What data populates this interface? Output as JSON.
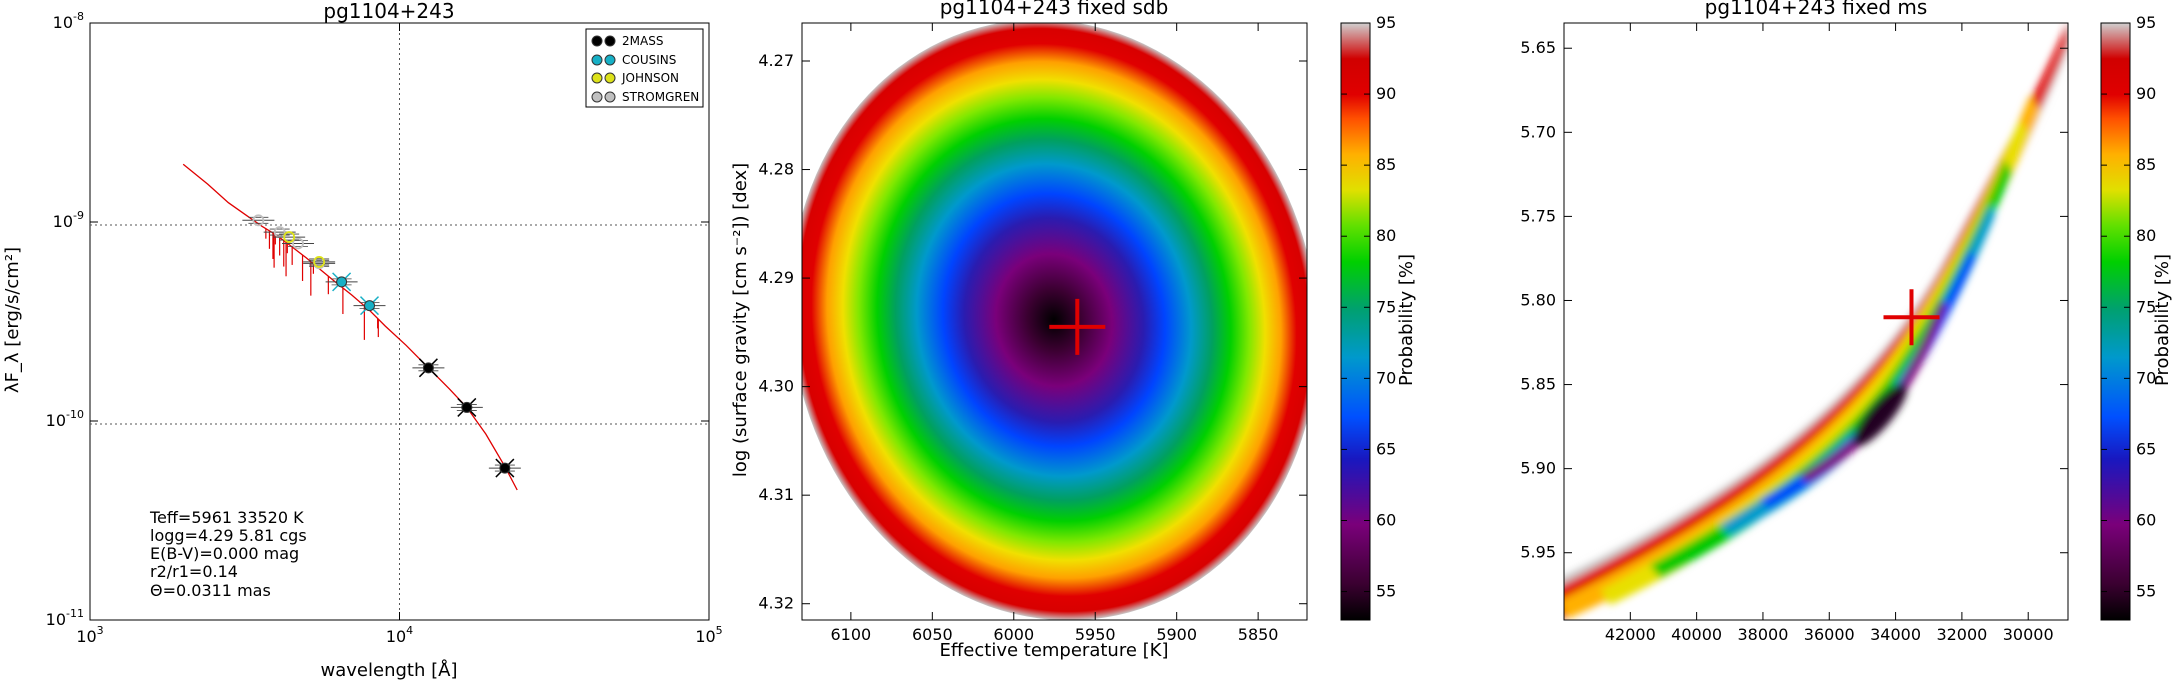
{
  "chart_data": [
    {
      "type": "scatter",
      "title": "pg1104+243",
      "xlabel": "wavelength [Å]",
      "ylabel": "λF_λ [erg/s/cm²]",
      "xscale": "log",
      "yscale": "log",
      "xlim": [
        1000,
        100000
      ],
      "ylim": [
        1e-11,
        1e-08
      ],
      "grid": true,
      "x_ticks": [
        {
          "v": 1000,
          "m": "10",
          "e": "3"
        },
        {
          "v": 10000,
          "m": "10",
          "e": "4"
        },
        {
          "v": 100000,
          "m": "10",
          "e": "5"
        }
      ],
      "y_ticks": [
        {
          "v": 1e-11,
          "m": "10",
          "e": "-11"
        },
        {
          "v": 1e-10,
          "m": "10",
          "e": "-10"
        },
        {
          "v": 1e-09,
          "m": "10",
          "e": "-9"
        },
        {
          "v": 1e-08,
          "m": "10",
          "e": "-8"
        }
      ],
      "legend": {
        "placement": "top-right",
        "entries": [
          {
            "label": "2MASS",
            "color": "#000000"
          },
          {
            "label": "COUSINS",
            "color": "#17b0c6"
          },
          {
            "label": "JOHNSON",
            "color": "#dde21a"
          },
          {
            "label": "STROMGREN",
            "color": "#c0c0c0"
          }
        ]
      },
      "photometry": [
        {
          "system": "STROMGREN",
          "x": 3500,
          "y": 1.02e-09
        },
        {
          "system": "STROMGREN",
          "x": 4100,
          "y": 8.9e-10
        },
        {
          "system": "STROMGREN",
          "x": 4700,
          "y": 7.8e-10
        },
        {
          "system": "STROMGREN",
          "x": 5500,
          "y": 6.2e-10
        },
        {
          "system": "JOHNSON",
          "x": 4400,
          "y": 8.4e-10
        },
        {
          "system": "JOHNSON",
          "x": 5500,
          "y": 6.3e-10
        },
        {
          "system": "COUSINS",
          "x": 6500,
          "y": 5e-10
        },
        {
          "system": "COUSINS",
          "x": 8000,
          "y": 3.8e-10
        },
        {
          "system": "2MASS",
          "x": 12400,
          "y": 1.85e-10
        },
        {
          "system": "2MASS",
          "x": 16500,
          "y": 1.17e-10
        },
        {
          "system": "2MASS",
          "x": 21900,
          "y": 5.8e-11
        }
      ],
      "model": [
        {
          "x": 2000,
          "y": 1.95e-09
        },
        {
          "x": 2400,
          "y": 1.55e-09
        },
        {
          "x": 2800,
          "y": 1.25e-09
        },
        {
          "x": 3200,
          "y": 1.08e-09
        },
        {
          "x": 3600,
          "y": 9.5e-10
        },
        {
          "x": 4000,
          "y": 8.6e-10
        },
        {
          "x": 4400,
          "y": 7.7e-10
        },
        {
          "x": 5000,
          "y": 6.6e-10
        },
        {
          "x": 5600,
          "y": 5.7e-10
        },
        {
          "x": 6200,
          "y": 5e-10
        },
        {
          "x": 7000,
          "y": 4.3e-10
        },
        {
          "x": 8000,
          "y": 3.6e-10
        },
        {
          "x": 9000,
          "y": 3e-10
        },
        {
          "x": 10500,
          "y": 2.4e-10
        },
        {
          "x": 12400,
          "y": 1.85e-10
        },
        {
          "x": 14500,
          "y": 1.45e-10
        },
        {
          "x": 16500,
          "y": 1.17e-10
        },
        {
          "x": 19000,
          "y": 8.6e-11
        },
        {
          "x": 21900,
          "y": 5.9e-11
        },
        {
          "x": 24000,
          "y": 4.5e-11
        }
      ],
      "annotations": [
        "Teff=5961   33520 K",
        "logg=4.29   5.81 cgs",
        "E(B-V)=0.000 mag",
        "r2/r1=0.14",
        "Θ=0.0311 mas"
      ]
    },
    {
      "type": "heatmap",
      "title": "pg1104+243 fixed sdb",
      "xlabel": "Effective temperature [K]",
      "ylabel": "log (surface gravity [cm s⁻²]) [dex]",
      "xlim": [
        6130,
        5820
      ],
      "ylim": [
        4.3215,
        4.2665
      ],
      "x_ticks": [
        6100,
        6050,
        6000,
        5950,
        5900,
        5850
      ],
      "x_tick_labels": [
        "6100",
        "6050",
        "6000",
        "5950",
        "5900",
        "5850"
      ],
      "y_ticks": [
        4.27,
        4.28,
        4.29,
        4.3,
        4.31,
        4.32
      ],
      "y_tick_labels": [
        "4.27",
        "4.28",
        "4.29",
        "4.30",
        "4.31",
        "4.32"
      ],
      "best_fit": {
        "x": 5961,
        "y": 4.2945
      },
      "contours": "concentric ellipses, 53-95 %",
      "colorbar": {
        "label": "Probability [%]",
        "ticks": [
          "95",
          "90",
          "85",
          "80",
          "75",
          "70",
          "65",
          "60",
          "55"
        ],
        "range": [
          53,
          95
        ]
      }
    },
    {
      "type": "heatmap",
      "title": "pg1104+243 fixed ms",
      "xlabel": "",
      "ylabel": "",
      "xlim": [
        44000,
        28800
      ],
      "ylim": [
        5.99,
        5.635
      ],
      "x_ticks": [
        42000,
        40000,
        38000,
        36000,
        34000,
        32000,
        30000
      ],
      "x_tick_labels": [
        "42000",
        "40000",
        "38000",
        "36000",
        "34000",
        "32000",
        "30000"
      ],
      "y_ticks": [
        5.65,
        5.7,
        5.75,
        5.8,
        5.85,
        5.9,
        5.95
      ],
      "y_tick_labels": [
        "5.65",
        "5.70",
        "5.75",
        "5.80",
        "5.85",
        "5.90",
        "5.95"
      ],
      "best_fit": {
        "x": 33520,
        "y": 5.81
      },
      "contours": "elongated diagonal band, 53-95 %",
      "colorbar": {
        "label": "Probability [%]",
        "ticks": [
          "95",
          "90",
          "85",
          "80",
          "75",
          "70",
          "65",
          "60",
          "55"
        ],
        "range": [
          53,
          95
        ]
      }
    }
  ]
}
